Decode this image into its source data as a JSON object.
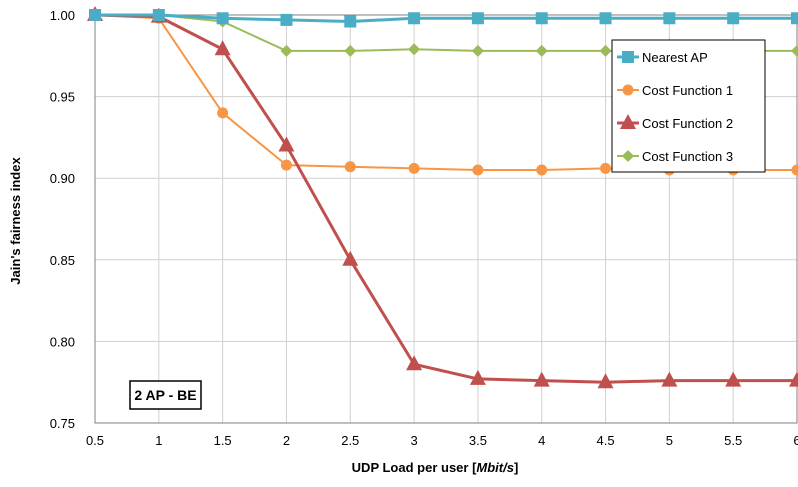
{
  "chart_data": {
    "type": "line",
    "title": "",
    "xlabel_main": "UDP Load per user [",
    "xlabel_unit": "Mbit/s",
    "xlabel_close": "]",
    "ylabel": "Jain's fairness index",
    "x": [
      0.5,
      1,
      1.5,
      2,
      2.5,
      3,
      3.5,
      4,
      4.5,
      5,
      5.5,
      6
    ],
    "x_tick_labels": [
      "0.5",
      "1",
      "1.5",
      "2",
      "2.5",
      "3",
      "3.5",
      "4",
      "4.5",
      "5",
      "5.5",
      "6"
    ],
    "y_tick_labels": [
      "0.75",
      "0.80",
      "0.85",
      "0.90",
      "0.95",
      "1.00"
    ],
    "ylim": [
      0.75,
      1.0
    ],
    "grid": true,
    "legend_position": "top-right",
    "annotation": "2 AP - BE",
    "series": [
      {
        "name": "Nearest AP",
        "color": "#4bacc6",
        "marker": "square",
        "values": [
          1.0,
          1.0,
          0.998,
          0.997,
          0.996,
          0.998,
          0.998,
          0.998,
          0.998,
          0.998,
          0.998,
          0.998
        ]
      },
      {
        "name": "Cost Function 1",
        "color": "#f79646",
        "marker": "circle",
        "values": [
          1.0,
          0.998,
          0.94,
          0.908,
          0.907,
          0.906,
          0.905,
          0.905,
          0.906,
          0.905,
          0.905,
          0.905
        ]
      },
      {
        "name": "Cost Function 2",
        "color": "#c0504d",
        "marker": "triangle",
        "values": [
          1.0,
          0.999,
          0.979,
          0.92,
          0.85,
          0.786,
          0.777,
          0.776,
          0.775,
          0.776,
          0.776,
          0.776
        ]
      },
      {
        "name": "Cost Function 3",
        "color": "#9bbb59",
        "marker": "diamond",
        "values": [
          1.0,
          1.0,
          0.996,
          0.978,
          0.978,
          0.979,
          0.978,
          0.978,
          0.978,
          0.978,
          0.978,
          0.978
        ]
      }
    ]
  }
}
